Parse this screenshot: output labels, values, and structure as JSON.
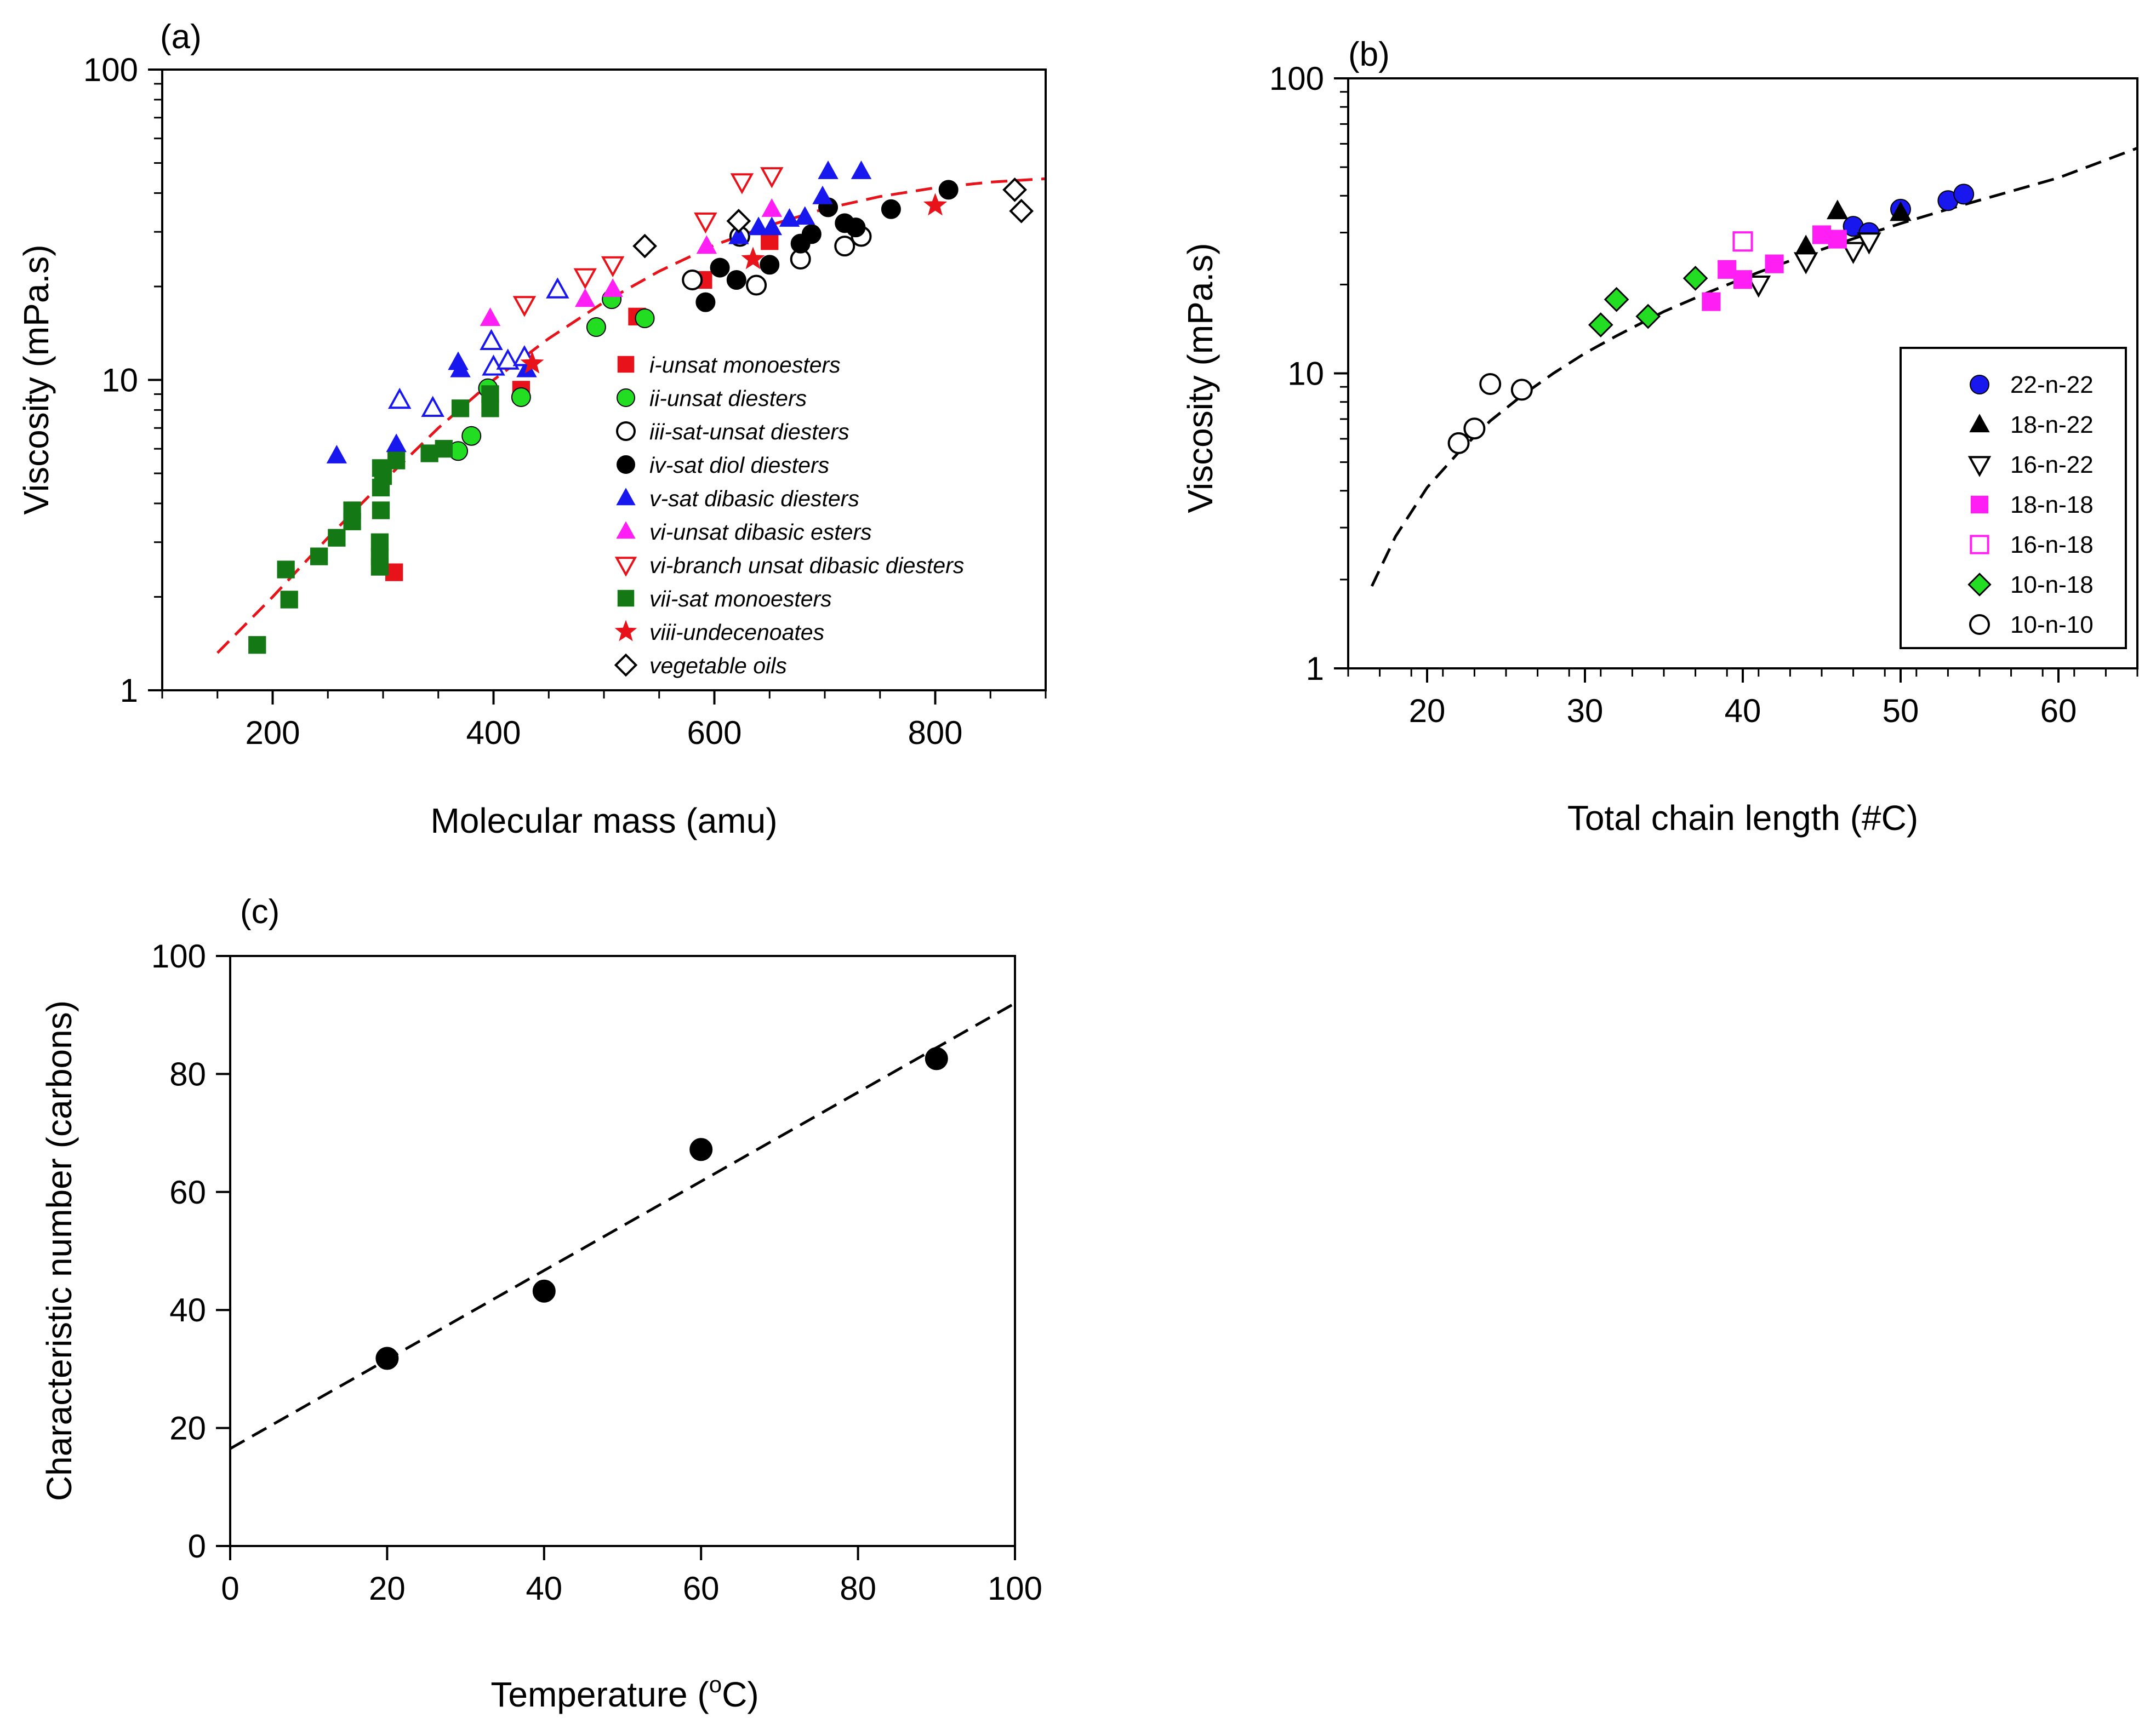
{
  "chart_data": [
    {
      "panel": "(a)",
      "type": "scatter",
      "xlabel": "Molecular mass (amu)",
      "ylabel": "Viscosity (mPa.s)",
      "xlim": [
        100,
        900
      ],
      "ylim": [
        1,
        100
      ],
      "yscale": "log",
      "x_ticks": [
        "200",
        "400",
        "600",
        "800"
      ],
      "x_tick_values": [
        200,
        400,
        600,
        800
      ],
      "y_ticks": [
        "1",
        "10",
        "100"
      ],
      "y_tick_values": [
        1,
        10,
        100
      ],
      "legend_position": "center-right",
      "fit_curve": {
        "style": "dashed",
        "color": "#e8121a",
        "x": [
          150,
          200,
          250,
          300,
          350,
          400,
          450,
          500,
          550,
          600,
          650,
          700,
          750,
          800,
          850,
          900
        ],
        "y": [
          1.32,
          2.0,
          3.1,
          4.7,
          7.0,
          10.0,
          13.6,
          17.8,
          22.4,
          27.2,
          31.5,
          35.6,
          39.0,
          41.6,
          43.4,
          44.5
        ]
      },
      "series": [
        {
          "name": "i-unsat monoesters",
          "marker": "square",
          "color": "#e8121a",
          "filled": true,
          "x": [
            310,
            590,
            650,
            425,
            530
          ],
          "y": [
            2.4,
            21,
            28,
            9.3,
            16
          ]
        },
        {
          "name": "ii-unsat diesters",
          "marker": "circle",
          "color": "#22dd22",
          "filled": true,
          "x": [
            368,
            380,
            395,
            425,
            493,
            507,
            537
          ],
          "y": [
            5.9,
            6.6,
            9.4,
            8.8,
            14.8,
            18.2,
            15.8
          ]
        },
        {
          "name": "iii-sat-unsat diesters",
          "marker": "circle",
          "color": "#000000",
          "filled": false,
          "x": [
            580,
            623,
            638,
            678,
            718,
            733
          ],
          "y": [
            21,
            29,
            20.2,
            24.5,
            27,
            29
          ]
        },
        {
          "name": "iv-sat diol diesters",
          "marker": "circle",
          "color": "#000000",
          "filled": true,
          "x": [
            592,
            605,
            620,
            650,
            678,
            688,
            703,
            718,
            728,
            760,
            812
          ],
          "y": [
            17.8,
            23,
            21,
            23.5,
            27.5,
            29.5,
            36,
            32,
            31,
            35.5,
            41
          ]
        },
        {
          "name": "v-sat dibasic diesters",
          "marker": "triangle-up",
          "color": "#1717ee",
          "filled": true,
          "x": [
            258,
            312,
            368,
            370,
            430,
            622,
            640,
            652,
            668,
            682,
            698,
            703,
            733
          ],
          "y": [
            5.7,
            6.2,
            11.4,
            10.8,
            10.8,
            29,
            31,
            31,
            33,
            33.5,
            39,
            47,
            47
          ]
        },
        {
          "name": "v-sat dibasic diesters (open)",
          "marker": "triangle-up",
          "color": "#1717ee",
          "filled": false,
          "x": [
            315,
            345,
            398,
            400,
            413,
            428,
            458
          ],
          "y": [
            8.6,
            8.1,
            13.3,
            11,
            11.5,
            11.8,
            19.5
          ]
        },
        {
          "name": "vi-unsat dibasic esters",
          "marker": "triangle-up",
          "color": "#ff1ef4",
          "filled": true,
          "x": [
            397,
            483,
            508,
            593,
            652
          ],
          "y": [
            15.8,
            18.2,
            19.6,
            27,
            35.5
          ]
        },
        {
          "name": "vi-branch unsat dibasic diesters",
          "marker": "triangle-down",
          "color": "#e8121a",
          "filled": false,
          "x": [
            428,
            483,
            508,
            592,
            625,
            652
          ],
          "y": [
            17.5,
            21.5,
            23.5,
            32.5,
            43.5,
            45.5
          ]
        },
        {
          "name": "vii-sat monoesters",
          "marker": "square",
          "color": "#147914",
          "filled": true,
          "x": [
            186,
            212,
            215,
            242,
            258,
            272,
            272,
            297,
            297,
            297,
            298,
            298,
            298,
            300,
            312,
            342,
            355,
            370,
            397,
            397
          ],
          "y": [
            1.4,
            2.45,
            1.96,
            2.7,
            3.1,
            3.8,
            3.5,
            2.5,
            2.7,
            3.0,
            3.8,
            4.5,
            5.2,
            4.9,
            5.5,
            5.8,
            6.0,
            8.1,
            8.1,
            9.0
          ]
        },
        {
          "name": "viii-undecenoates",
          "marker": "star",
          "color": "#e8121a",
          "filled": true,
          "x": [
            435,
            635,
            800
          ],
          "y": [
            11.3,
            24.5,
            36.5
          ]
        },
        {
          "name": "vegetable oils",
          "marker": "diamond",
          "color": "#000000",
          "filled": false,
          "x": [
            537,
            622,
            872,
            878
          ],
          "y": [
            27,
            32.5,
            41,
            35
          ]
        }
      ],
      "legend": [
        {
          "label": "i-unsat monoesters",
          "marker": "square",
          "color": "#e8121a",
          "filled": true
        },
        {
          "label": "ii-unsat diesters",
          "marker": "circle",
          "color": "#22dd22",
          "filled": true
        },
        {
          "label": "iii-sat-unsat diesters",
          "marker": "circle",
          "color": "#000000",
          "filled": false
        },
        {
          "label": "iv-sat diol diesters",
          "marker": "circle",
          "color": "#000000",
          "filled": true
        },
        {
          "label": "v-sat dibasic diesters",
          "marker": "triangle-up",
          "color": "#1717ee",
          "filled": true
        },
        {
          "label": "vi-unsat dibasic esters",
          "marker": "triangle-up",
          "color": "#ff1ef4",
          "filled": true
        },
        {
          "label": "vi-branch unsat dibasic diesters",
          "marker": "triangle-down",
          "color": "#e8121a",
          "filled": false
        },
        {
          "label": "vii-sat monoesters",
          "marker": "square",
          "color": "#147914",
          "filled": true
        },
        {
          "label": "viii-undecenoates",
          "marker": "star",
          "color": "#e8121a",
          "filled": true
        },
        {
          "label": "vegetable oils",
          "marker": "diamond",
          "color": "#000000",
          "filled": false
        }
      ]
    },
    {
      "panel": "(b)",
      "type": "scatter",
      "xlabel": "Total chain length (#C)",
      "ylabel": "Viscosity (mPa.s)",
      "xlim": [
        15,
        65
      ],
      "ylim": [
        1,
        100
      ],
      "yscale": "log",
      "x_ticks": [
        "20",
        "30",
        "40",
        "50",
        "60"
      ],
      "x_tick_values": [
        20,
        30,
        40,
        50,
        60
      ],
      "y_ticks": [
        "1",
        "10",
        "100"
      ],
      "y_tick_values": [
        1,
        10,
        100
      ],
      "legend_position": "bottom-right",
      "fit_curve": {
        "style": "dashed",
        "color": "#000000",
        "x": [
          16.5,
          18,
          20,
          22,
          24,
          26,
          28,
          30,
          32,
          35,
          38,
          41,
          44,
          47,
          50,
          53,
          56,
          60,
          65
        ],
        "y": [
          1.9,
          2.8,
          4.1,
          5.4,
          6.9,
          8.4,
          10.0,
          11.7,
          13.4,
          16.2,
          19.0,
          22.0,
          25.2,
          28.6,
          32.2,
          36.0,
          40.0,
          46.0,
          58.0
        ]
      },
      "series": [
        {
          "name": "22-n-22",
          "marker": "circle",
          "color": "#1717ee",
          "filled": true,
          "x": [
            47,
            48,
            50,
            53,
            54
          ],
          "y": [
            31.5,
            30,
            36,
            38.5,
            40.5
          ]
        },
        {
          "name": "18-n-22",
          "marker": "triangle-up",
          "color": "#000000",
          "filled": true,
          "x": [
            44,
            46,
            50
          ],
          "y": [
            27,
            35.5,
            35
          ]
        },
        {
          "name": "16-n-22",
          "marker": "triangle-down",
          "color": "#000000",
          "filled": false,
          "x": [
            41,
            44,
            47,
            48
          ],
          "y": [
            20,
            24,
            26,
            28
          ]
        },
        {
          "name": "18-n-18",
          "marker": "square",
          "color": "#ff1ef4",
          "filled": true,
          "x": [
            38,
            39,
            40,
            42,
            45,
            46
          ],
          "y": [
            17.5,
            22.5,
            20.8,
            23.5,
            29.5,
            28.5
          ]
        },
        {
          "name": "16-n-18",
          "marker": "square",
          "color": "#ff1ef4",
          "filled": false,
          "x": [
            40
          ],
          "y": [
            28
          ]
        },
        {
          "name": "10-n-18",
          "marker": "diamond",
          "color": "#22dd22",
          "filled": true,
          "x": [
            31,
            32,
            34,
            37
          ],
          "y": [
            14.6,
            17.8,
            15.6,
            21
          ]
        },
        {
          "name": "10-n-10",
          "marker": "circle",
          "color": "#000000",
          "filled": false,
          "x": [
            22,
            23,
            24,
            26
          ],
          "y": [
            5.8,
            6.5,
            9.2,
            8.8
          ]
        }
      ],
      "legend": [
        {
          "label": "22-n-22",
          "marker": "circle",
          "color": "#1717ee",
          "filled": true
        },
        {
          "label": "18-n-22",
          "marker": "triangle-up",
          "color": "#000000",
          "filled": true
        },
        {
          "label": "16-n-22",
          "marker": "triangle-down",
          "color": "#000000",
          "filled": false
        },
        {
          "label": "18-n-18",
          "marker": "square",
          "color": "#ff1ef4",
          "filled": true
        },
        {
          "label": "16-n-18",
          "marker": "square",
          "color": "#ff1ef4",
          "filled": false
        },
        {
          "label": "10-n-18",
          "marker": "diamond",
          "color": "#22dd22",
          "filled": true
        },
        {
          "label": "10-n-10",
          "marker": "circle",
          "color": "#000000",
          "filled": false
        }
      ]
    },
    {
      "panel": "(c)",
      "type": "scatter",
      "xlabel": "Temperature (",
      "xlabel_superscript": "o",
      "xlabel_suffix": "C)",
      "ylabel": "Characteristic number (carbons)",
      "xlim": [
        0,
        100
      ],
      "ylim": [
        0,
        100
      ],
      "yscale": "linear",
      "x_ticks": [
        "0",
        "20",
        "40",
        "60",
        "80",
        "100"
      ],
      "x_tick_values": [
        0,
        20,
        40,
        60,
        80,
        100
      ],
      "y_ticks": [
        "0",
        "20",
        "40",
        "60",
        "80",
        "100"
      ],
      "y_tick_values": [
        0,
        20,
        40,
        60,
        80,
        100
      ],
      "fit_line": {
        "style": "dashed",
        "color": "#000000",
        "x": [
          0,
          100
        ],
        "y": [
          16.5,
          92.0
        ]
      },
      "series": [
        {
          "name": "characteristic number",
          "marker": "circle",
          "color": "#000000",
          "filled": true,
          "x": [
            20,
            40,
            60,
            90
          ],
          "y": [
            31.8,
            43.2,
            67.2,
            82.6
          ]
        }
      ]
    }
  ]
}
